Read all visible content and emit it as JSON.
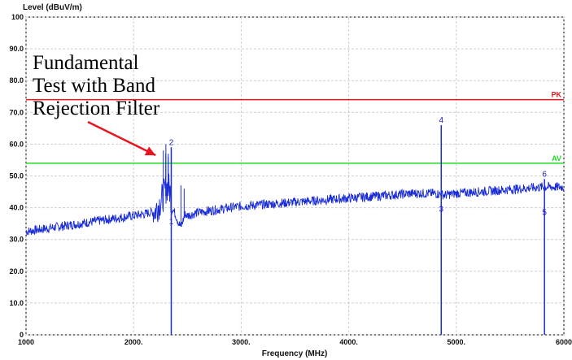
{
  "chart_data": {
    "type": "line",
    "ylabel": "Level (dBuV/m)",
    "xlabel": "Frequency (MHz)",
    "xlim": [
      1000,
      6000
    ],
    "ylim": [
      0,
      100
    ],
    "x_ticks": [
      {
        "value": 1000,
        "label": "1000"
      },
      {
        "value": 2000,
        "label": "2000."
      },
      {
        "value": 3000,
        "label": "3000."
      },
      {
        "value": 4000,
        "label": "4000."
      },
      {
        "value": 5000,
        "label": "5000."
      },
      {
        "value": 6000,
        "label": "6000"
      }
    ],
    "y_ticks": [
      {
        "value": 0,
        "label": "0"
      },
      {
        "value": 10,
        "label": "10.0"
      },
      {
        "value": 20,
        "label": "20.0"
      },
      {
        "value": 30,
        "label": "30.0"
      },
      {
        "value": 40,
        "label": "40.0"
      },
      {
        "value": 50,
        "label": "50.0"
      },
      {
        "value": 60,
        "label": "60.0"
      },
      {
        "value": 70,
        "label": "70.0"
      },
      {
        "value": 80,
        "label": "80.0"
      },
      {
        "value": 90,
        "label": "90.0"
      },
      {
        "value": 100,
        "label": "100"
      }
    ],
    "grid": true,
    "limits": [
      {
        "label": "PK",
        "value": 74,
        "color": "#e8141e"
      },
      {
        "label": "AV",
        "value": 54,
        "color": "#22dd22"
      }
    ],
    "series": [
      {
        "color": "#1a2cd6",
        "x": [
          1000,
          1100,
          1200,
          1300,
          1400,
          1500,
          1600,
          1700,
          1800,
          1900,
          2000,
          2100,
          2150,
          2200,
          2250,
          2280,
          2300,
          2320,
          2340,
          2360,
          2400,
          2420,
          2440,
          2460,
          2480,
          2500,
          2550,
          2600,
          2700,
          2800,
          2900,
          3000,
          3200,
          3400,
          3600,
          3800,
          4000,
          4200,
          4400,
          4600,
          4800,
          4900,
          5000,
          5200,
          5400,
          5600,
          5800,
          5900,
          6000
        ],
        "values": [
          32.5,
          33,
          33.5,
          34,
          34.5,
          35,
          35.5,
          36,
          36.5,
          37,
          37.5,
          38,
          38.5,
          39,
          42,
          44,
          46,
          47,
          45,
          40,
          37,
          35,
          34,
          36,
          38,
          37.5,
          38,
          38.5,
          39,
          39.5,
          40,
          40.5,
          41,
          41.5,
          42,
          42.5,
          43,
          43.5,
          44,
          44.5,
          44.5,
          44,
          44.5,
          45,
          45.5,
          46,
          46.5,
          46.5,
          46.5
        ]
      }
    ],
    "spurs": [
      {
        "x": 2276,
        "values": [
          58,
          57,
          56
        ]
      },
      {
        "x": 2300,
        "values": [
          60,
          57
        ]
      },
      {
        "x": 2440,
        "values": [
          47
        ]
      },
      {
        "x": 2470,
        "values": [
          46
        ]
      }
    ],
    "markers": [
      {
        "label": "1",
        "x": 2350,
        "y": 34
      },
      {
        "label": "2",
        "x": 2350,
        "y": 59
      },
      {
        "label": "3",
        "x": 4860,
        "y": 38
      },
      {
        "label": "4",
        "x": 4860,
        "y": 66
      },
      {
        "label": "5",
        "x": 5820,
        "y": 37
      },
      {
        "label": "6",
        "x": 5820,
        "y": 49
      }
    ],
    "marker_lines": [
      {
        "x": 2350,
        "from": 0,
        "to": 59
      },
      {
        "x": 4860,
        "from": 0,
        "to": 66
      },
      {
        "x": 5820,
        "from": 0,
        "to": 49
      }
    ],
    "annotation": {
      "lines": [
        "Fundamental",
        "Test with Band",
        "Rejection Filter"
      ],
      "arrow_to": {
        "x": 2280,
        "y": 56
      }
    }
  }
}
